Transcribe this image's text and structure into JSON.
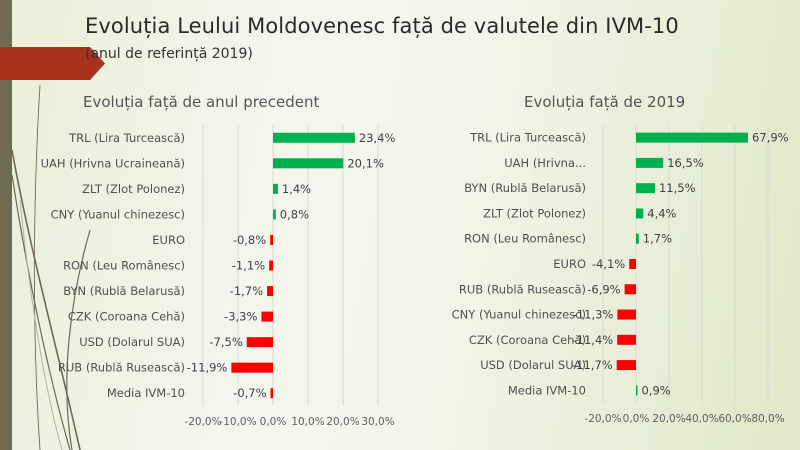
{
  "slide": {
    "title": "Evoluția Leului Moldovenesc față de valutele din IVM-10",
    "subtitle": "(anul de referință 2019)",
    "accent_color": "#a8321b",
    "sidebar_color": "#6f6a52"
  },
  "chart_data": [
    {
      "type": "bar",
      "orientation": "horizontal",
      "title": "Evoluția față de anul precedent",
      "categories": [
        "TRL (Lira Turcească)",
        "UAH (Hrivna Ucraineană)",
        "ZLT (Zlot Polonez)",
        "CNY (Yuanul chinezesc)",
        "EURO",
        "RON (Leu Românesc)",
        "BYN (Rublă Belarusă)",
        "CZK (Coroana Cehă)",
        "USD (Dolarul SUA)",
        "RUB (Rublă Rusească)",
        "Media IVM-10"
      ],
      "values": [
        23.4,
        20.1,
        1.4,
        0.8,
        -0.8,
        -1.1,
        -1.7,
        -3.3,
        -7.5,
        -11.9,
        -0.7
      ],
      "data_labels": [
        "23,4%",
        "20,1%",
        "1,4%",
        "0,8%",
        "-0,8%",
        "-1,1%",
        "-1,7%",
        "-3,3%",
        "-7,5%",
        "-11,9%",
        "-0,7%"
      ],
      "xlim": [
        -20,
        30
      ],
      "x_ticks": [
        -20,
        -10,
        0,
        10,
        20,
        30
      ],
      "x_tick_labels": [
        "-20,0%",
        "-10,0%",
        "0,0%",
        "10,0%",
        "20,0%",
        "30,0%"
      ],
      "grid": true,
      "positive_color": "#00b050",
      "negative_color": "#ff0000"
    },
    {
      "type": "bar",
      "orientation": "horizontal",
      "title": "Evoluția față de 2019",
      "categories": [
        "TRL (Lira Turcească)",
        "UAH (Hrivna...",
        "BYN (Rublă Belarusă)",
        "ZLT (Zlot Polonez)",
        "RON (Leu Românesc)",
        "EURO",
        "RUB (Rublă Rusească)",
        "CNY (Yuanul chinezesc)",
        "CZK (Coroana Cehă)",
        "USD (Dolarul SUA)",
        "Media IVM-10"
      ],
      "values": [
        67.9,
        16.5,
        11.5,
        4.4,
        1.7,
        -4.1,
        -6.9,
        -11.3,
        -11.4,
        -11.7,
        0.9
      ],
      "data_labels": [
        "67,9%",
        "16,5%",
        "11,5%",
        "4,4%",
        "1,7%",
        "-4,1%",
        "-6,9%",
        "-11,3%",
        "-11,4%",
        "-11,7%",
        "0,9%"
      ],
      "xlim": [
        -20,
        80
      ],
      "x_ticks": [
        -20,
        0,
        20,
        40,
        60,
        80
      ],
      "x_tick_labels": [
        "-20,0%",
        "0,0%",
        "20,0%",
        "40,0%",
        "60,0%",
        "80,0%"
      ],
      "grid": true,
      "positive_color": "#00b050",
      "negative_color": "#ff0000"
    }
  ]
}
